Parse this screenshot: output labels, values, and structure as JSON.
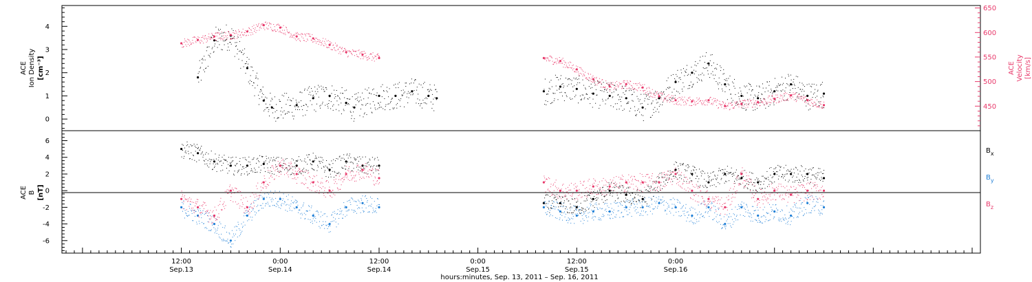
{
  "chart_data": [
    {
      "type": "scatter",
      "panel": "top",
      "left_axis": {
        "label_lines": [
          "ACE",
          "Ion Density"
        ],
        "unit": "[cm⁻³]",
        "ylim": [
          -0.5,
          4.9
        ],
        "ticks": [
          "0",
          "1",
          "2",
          "3",
          "4"
        ]
      },
      "right_axis": {
        "label_lines": [
          "ACE",
          "Velocity"
        ],
        "unit": "[km/s]",
        "ylim": [
          400,
          655
        ],
        "ticks": [
          "450",
          "500",
          "550",
          "600",
          "650"
        ]
      },
      "series": [
        {
          "name": "Ion Density",
          "color": "#000000",
          "axis": "left",
          "x": [
            2,
            4,
            6,
            8,
            10,
            11,
            14,
            16,
            18,
            20,
            21,
            24,
            26,
            28,
            30,
            31,
            44,
            46,
            48,
            50,
            52,
            54,
            56,
            58,
            60,
            62,
            64,
            66,
            68,
            70,
            72,
            74,
            76,
            78
          ],
          "values": [
            1.8,
            3.4,
            3.6,
            2.2,
            0.8,
            0.5,
            0.6,
            0.9,
            1.0,
            0.7,
            0.5,
            1.0,
            1.0,
            1.2,
            1.0,
            0.9,
            1.2,
            1.4,
            1.3,
            1.1,
            1.0,
            0.9,
            0.5,
            0.9,
            1.6,
            2.0,
            2.4,
            1.5,
            1.0,
            0.9,
            1.2,
            1.5,
            1.0,
            1.1
          ]
        },
        {
          "name": "Velocity",
          "color": "#e8386a",
          "axis": "right",
          "x": [
            0,
            2,
            4,
            6,
            8,
            10,
            12,
            14,
            16,
            18,
            20,
            22,
            24,
            44,
            46,
            48,
            50,
            52,
            54,
            56,
            58,
            60,
            62,
            64,
            66,
            68,
            70,
            72,
            74,
            76,
            78
          ],
          "values": [
            578,
            585,
            592,
            595,
            602,
            615,
            610,
            592,
            588,
            575,
            560,
            555,
            548,
            548,
            542,
            525,
            505,
            490,
            495,
            488,
            470,
            462,
            460,
            462,
            450,
            455,
            458,
            465,
            472,
            462,
            452
          ]
        }
      ]
    },
    {
      "type": "scatter",
      "panel": "bottom",
      "left_axis": {
        "label_lines": [
          "ACE",
          "B"
        ],
        "unit": "[nT]",
        "ylim": [
          -7.5,
          7.2
        ],
        "ticks": [
          "-6",
          "-4",
          "-2",
          "0",
          "2",
          "4",
          "6"
        ]
      },
      "series": [
        {
          "name": "Bx",
          "color": "#000000",
          "x": [
            0,
            2,
            4,
            6,
            8,
            10,
            12,
            14,
            16,
            18,
            20,
            22,
            24,
            44,
            46,
            48,
            50,
            52,
            54,
            56,
            58,
            60,
            62,
            64,
            66,
            68,
            70,
            72,
            74,
            76,
            78
          ],
          "values": [
            5,
            4.5,
            3.5,
            3,
            3,
            3.2,
            3,
            3,
            3.5,
            2.5,
            3.5,
            3,
            3,
            -1.5,
            -1.5,
            -2,
            -1,
            0,
            -0.5,
            -1,
            1,
            2.5,
            2,
            1,
            2,
            1.5,
            1,
            2,
            2,
            2,
            1.5
          ]
        },
        {
          "name": "By",
          "color": "#1f7fd6",
          "x": [
            0,
            2,
            4,
            6,
            8,
            10,
            12,
            14,
            16,
            18,
            20,
            22,
            24,
            44,
            46,
            48,
            50,
            52,
            54,
            56,
            58,
            60,
            62,
            64,
            66,
            68,
            70,
            72,
            74,
            76,
            78
          ],
          "values": [
            -2,
            -3,
            -4,
            -6,
            -3,
            -1,
            -1,
            -2,
            -3,
            -4,
            -2,
            -1.5,
            -2,
            -2,
            -2.5,
            -3,
            -2.5,
            -2.5,
            -2,
            -2,
            -1.5,
            -2,
            -3,
            -2,
            -4,
            -2,
            -3,
            -2.5,
            -3,
            -1.5,
            -2
          ]
        },
        {
          "name": "Bz",
          "color": "#e8386a",
          "x": [
            0,
            2,
            4,
            6,
            8,
            10,
            12,
            14,
            16,
            18,
            20,
            22,
            24,
            44,
            46,
            48,
            50,
            52,
            54,
            56,
            58,
            60,
            62,
            64,
            66,
            68,
            70,
            72,
            74,
            76,
            78
          ],
          "values": [
            -1,
            -2,
            -3,
            0,
            -2,
            1,
            3,
            2,
            1,
            0,
            2,
            2.5,
            1.5,
            1,
            0,
            0,
            0.5,
            0.5,
            1,
            1,
            1,
            2,
            0,
            -1,
            -2,
            2,
            -1,
            0,
            -0.5,
            0,
            0
          ]
        }
      ],
      "legend": {
        "placement": "right",
        "entries": [
          {
            "label": "B",
            "sub": "x",
            "color": "#000000"
          },
          {
            "label": "B",
            "sub": "y",
            "color": "#1f7fd6"
          },
          {
            "label": "B",
            "sub": "z",
            "color": "#e8386a"
          }
        ]
      }
    }
  ],
  "x_axis": {
    "xlim_hours": [
      -14.5,
      97
    ],
    "ticks": [
      {
        "hours": 0,
        "line1": "12:00",
        "line2": "Sep.13"
      },
      {
        "hours": 12,
        "line1": "0:00",
        "line2": "Sep.14"
      },
      {
        "hours": 24,
        "line1": "12:00",
        "line2": "Sep.14"
      },
      {
        "hours": 36,
        "line1": "0:00",
        "line2": "Sep.15"
      },
      {
        "hours": 48,
        "line1": "12:00",
        "line2": "Sep.15"
      },
      {
        "hours": 60,
        "line1": "0:00",
        "line2": "Sep.16"
      }
    ],
    "label": "hours:minutes, Sep. 13, 2011 – Sep. 16, 2011"
  },
  "colors": {
    "black": "#000000",
    "pink": "#e8386a",
    "blue": "#1f7fd6"
  }
}
